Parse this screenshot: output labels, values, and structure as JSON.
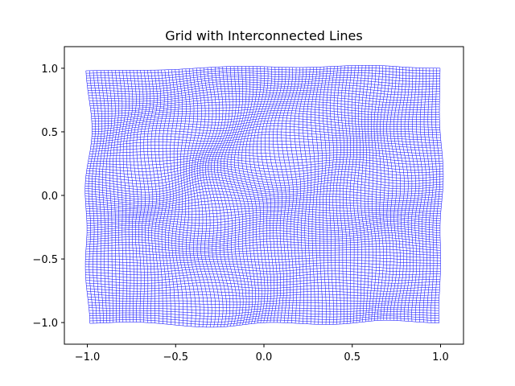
{
  "chart_data": {
    "type": "line",
    "title": "Grid with Interconnected Lines",
    "xlabel": "",
    "ylabel": "",
    "xlim": [
      -1.13,
      1.13
    ],
    "ylim": [
      -1.17,
      1.17
    ],
    "xticks": [
      -1.0,
      -0.5,
      0.0,
      0.5,
      1.0
    ],
    "xtick_labels": [
      "−1.0",
      "−0.5",
      "0.0",
      "0.5",
      "1.0"
    ],
    "yticks": [
      -1.0,
      -0.5,
      0.0,
      0.5,
      1.0
    ],
    "ytick_labels": [
      "−1.0",
      "−0.5",
      "0.0",
      "0.5",
      "1.0"
    ],
    "grid": false,
    "legend": "none",
    "line_color": "#0000ff",
    "grid_divisions": 100,
    "grid_extent": [
      -1.0,
      1.0
    ]
  }
}
